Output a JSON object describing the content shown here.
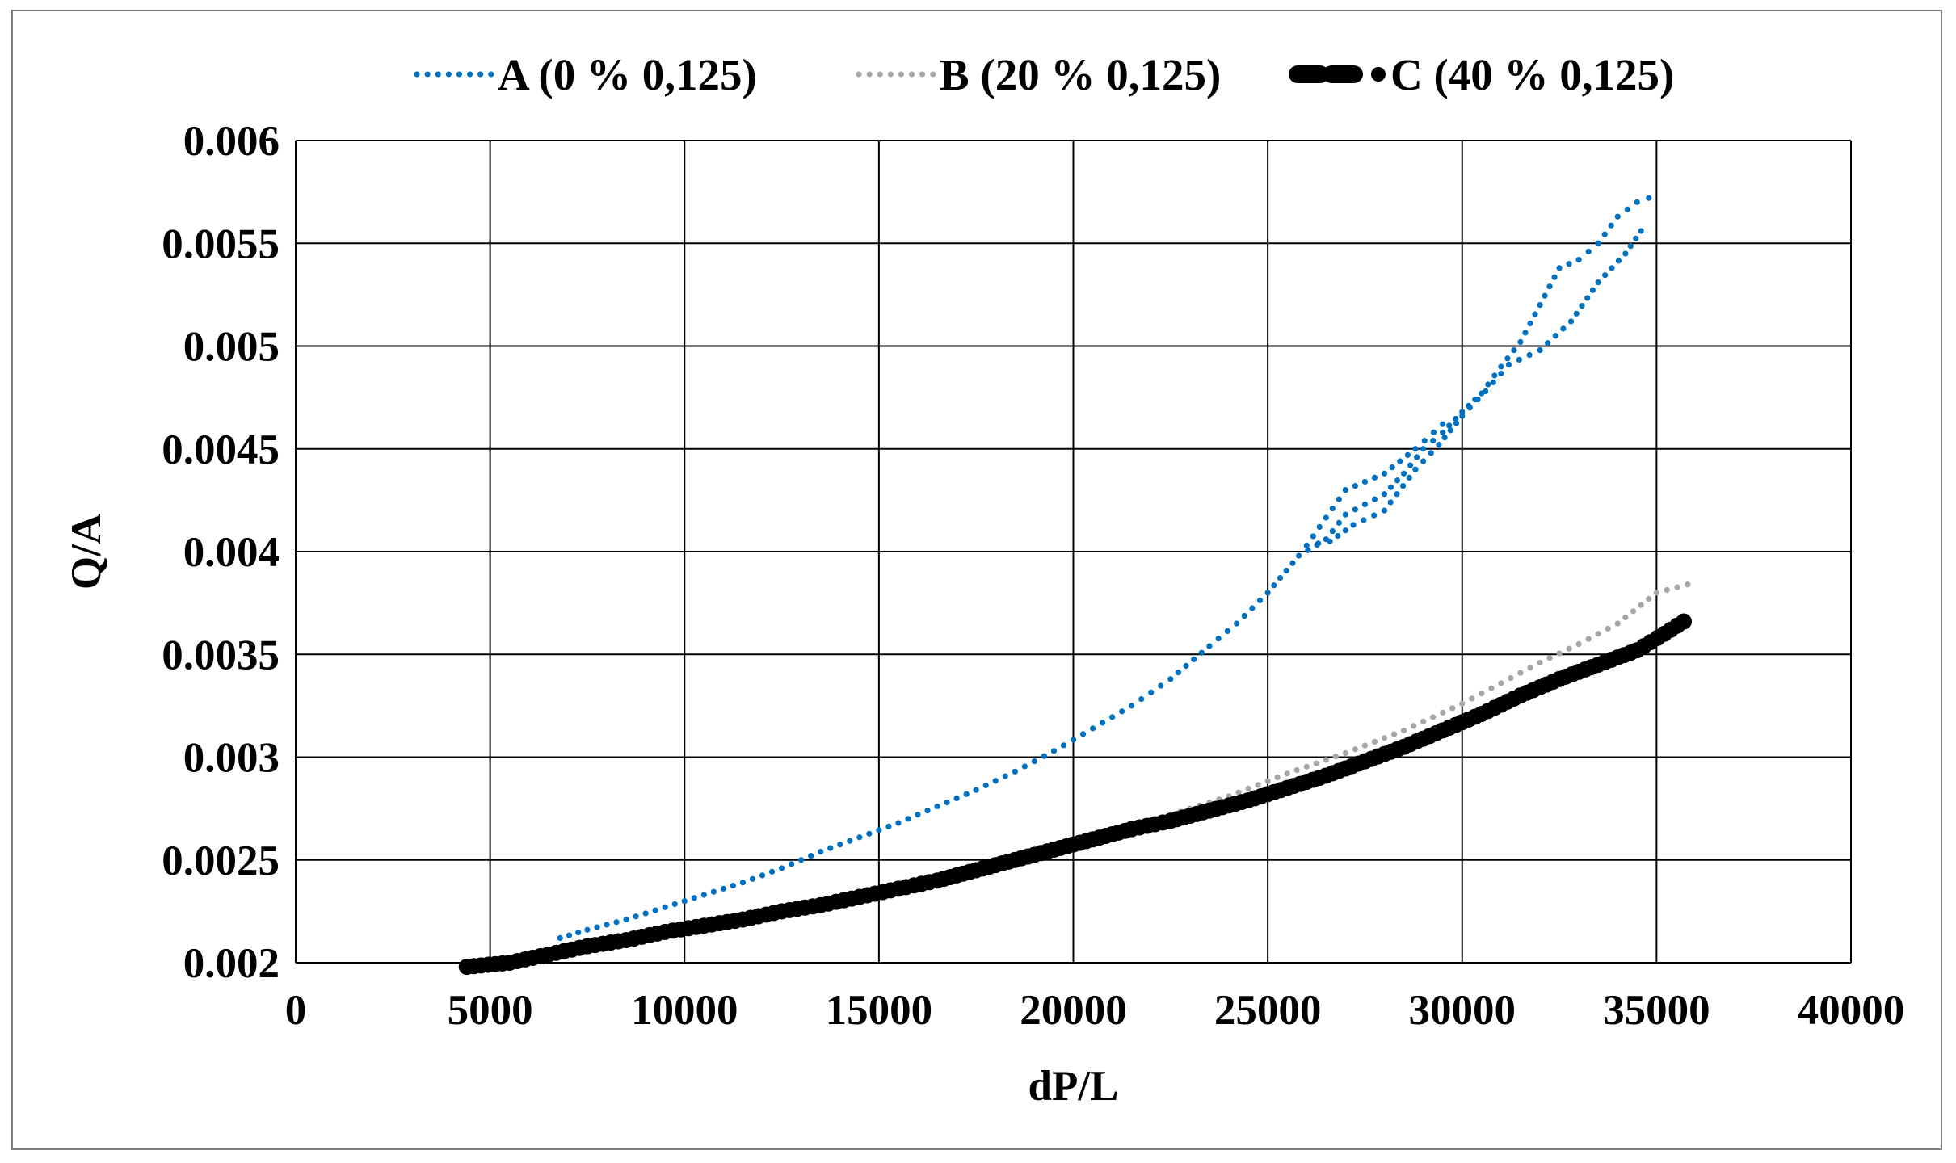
{
  "chart_data": {
    "type": "scatter",
    "title": "",
    "xlabel": "dP/L",
    "ylabel": "Q/A",
    "xlim": [
      0,
      40000
    ],
    "ylim": [
      0.002,
      0.006
    ],
    "x_ticks": [
      0,
      5000,
      10000,
      15000,
      20000,
      25000,
      30000,
      35000,
      40000
    ],
    "y_ticks": [
      0.002,
      0.0025,
      0.003,
      0.0035,
      0.004,
      0.0045,
      0.005,
      0.0055,
      0.006
    ],
    "x_tick_labels": [
      "0",
      "5000",
      "10000",
      "15000",
      "20000",
      "25000",
      "30000",
      "35000",
      "40000"
    ],
    "y_tick_labels": [
      "0.002",
      "0.0025",
      "0.003",
      "0.0035",
      "0.004",
      "0.0045",
      "0.005",
      "0.0055",
      "0.006"
    ],
    "grid": true,
    "legend_position": "top",
    "series": [
      {
        "name": "A (0 % 0,125)",
        "color": "#0070C0",
        "marker": "dotted",
        "points": [
          [
            6800,
            0.00212
          ],
          [
            7500,
            0.00216
          ],
          [
            8500,
            0.00221
          ],
          [
            9500,
            0.00227
          ],
          [
            10500,
            0.00233
          ],
          [
            11500,
            0.00239
          ],
          [
            12500,
            0.00246
          ],
          [
            13500,
            0.00254
          ],
          [
            14500,
            0.00261
          ],
          [
            15500,
            0.00268
          ],
          [
            16500,
            0.00276
          ],
          [
            17500,
            0.00284
          ],
          [
            18500,
            0.00293
          ],
          [
            19500,
            0.00303
          ],
          [
            20500,
            0.00314
          ],
          [
            21500,
            0.00325
          ],
          [
            22500,
            0.00338
          ],
          [
            23500,
            0.00354
          ],
          [
            24200,
            0.00365
          ],
          [
            25000,
            0.0038
          ],
          [
            25800,
            0.00398
          ],
          [
            26500,
            0.00406
          ],
          [
            27000,
            0.00418
          ],
          [
            27500,
            0.00423
          ],
          [
            28000,
            0.00428
          ],
          [
            28500,
            0.00438
          ],
          [
            29000,
            0.0045
          ],
          [
            29500,
            0.00458
          ],
          [
            30000,
            0.00468
          ],
          [
            30500,
            0.00477
          ],
          [
            31000,
            0.0049
          ],
          [
            31500,
            0.00502
          ],
          [
            32000,
            0.0052
          ],
          [
            32500,
            0.00538
          ],
          [
            33000,
            0.00542
          ],
          [
            33500,
            0.0055
          ],
          [
            34000,
            0.00563
          ],
          [
            34500,
            0.0057
          ],
          [
            34800,
            0.00572
          ]
        ],
        "points_return": [
          [
            34600,
            0.00556
          ],
          [
            34200,
            0.00545
          ],
          [
            33500,
            0.00531
          ],
          [
            32800,
            0.00512
          ],
          [
            32000,
            0.00498
          ],
          [
            31200,
            0.00491
          ],
          [
            30600,
            0.00478
          ],
          [
            30000,
            0.00466
          ],
          [
            29400,
            0.00452
          ],
          [
            28800,
            0.0044
          ],
          [
            28000,
            0.0042
          ],
          [
            27200,
            0.00413
          ],
          [
            26600,
            0.00405
          ],
          [
            26000,
            0.00403
          ],
          [
            27000,
            0.0043
          ],
          [
            28000,
            0.00438
          ],
          [
            28800,
            0.0045
          ],
          [
            29500,
            0.00462
          ]
        ]
      },
      {
        "name": "B (20 % 0,125)",
        "color": "#A6A6A6",
        "marker": "dotted",
        "points": [
          [
            4500,
            0.00198
          ],
          [
            6000,
            0.00203
          ],
          [
            7500,
            0.00208
          ],
          [
            9000,
            0.00212
          ],
          [
            10500,
            0.00218
          ],
          [
            12000,
            0.00224
          ],
          [
            13500,
            0.00229
          ],
          [
            15000,
            0.00235
          ],
          [
            16500,
            0.00241
          ],
          [
            18000,
            0.00248
          ],
          [
            19500,
            0.00255
          ],
          [
            21000,
            0.00263
          ],
          [
            22500,
            0.00272
          ],
          [
            24000,
            0.00281
          ],
          [
            25500,
            0.00292
          ],
          [
            27000,
            0.00302
          ],
          [
            28500,
            0.00313
          ],
          [
            30000,
            0.00326
          ],
          [
            31000,
            0.00336
          ],
          [
            32000,
            0.00346
          ],
          [
            33000,
            0.00355
          ],
          [
            34000,
            0.00365
          ],
          [
            35000,
            0.0038
          ],
          [
            35800,
            0.00384
          ]
        ]
      },
      {
        "name": "C (40 % 0,125)",
        "color": "#000000",
        "marker": "dashed-thick",
        "points": [
          [
            4400,
            0.00198
          ],
          [
            5500,
            0.002
          ],
          [
            6500,
            0.00204
          ],
          [
            7500,
            0.00208
          ],
          [
            8500,
            0.00211
          ],
          [
            9500,
            0.00215
          ],
          [
            10500,
            0.00218
          ],
          [
            11500,
            0.00221
          ],
          [
            12500,
            0.00225
          ],
          [
            13500,
            0.00228
          ],
          [
            14500,
            0.00232
          ],
          [
            15500,
            0.00236
          ],
          [
            16500,
            0.0024
          ],
          [
            17500,
            0.00245
          ],
          [
            18500,
            0.0025
          ],
          [
            19500,
            0.00255
          ],
          [
            20500,
            0.0026
          ],
          [
            21500,
            0.00265
          ],
          [
            22500,
            0.00269
          ],
          [
            23500,
            0.00274
          ],
          [
            24500,
            0.00279
          ],
          [
            25500,
            0.00285
          ],
          [
            26500,
            0.00291
          ],
          [
            27500,
            0.00298
          ],
          [
            28500,
            0.00305
          ],
          [
            29500,
            0.00313
          ],
          [
            30500,
            0.00321
          ],
          [
            31500,
            0.0033
          ],
          [
            32500,
            0.00338
          ],
          [
            33500,
            0.00345
          ],
          [
            34500,
            0.00352
          ],
          [
            35200,
            0.0036
          ],
          [
            35700,
            0.00366
          ]
        ]
      }
    ]
  }
}
